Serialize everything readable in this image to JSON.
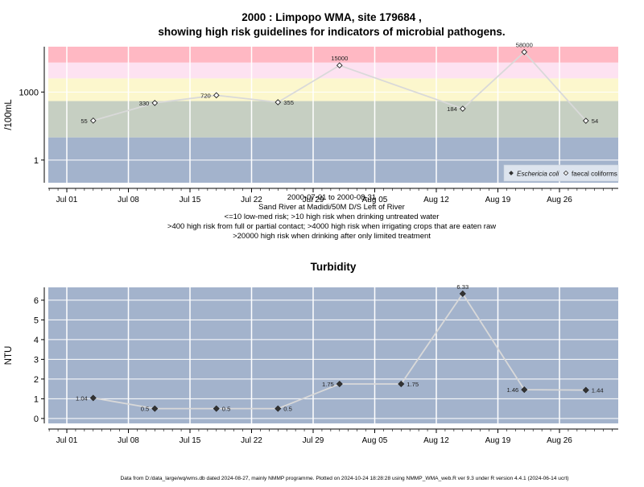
{
  "title_line1": "2000 : Limpopo WMA, site 179684 ,",
  "title_line2": "showing high risk guidelines for indicators of microbial pathogens.",
  "caption_lines": [
    "2000-07-01 to 2000-08-31",
    "Sand River at Madidi/50M D/S Left of River",
    "<=10 low-med risk; >10 high risk when drinking untreated water",
    ">400 high risk from full or partial contact; >4000 high risk when irrigating crops that are eaten raw",
    ">20000 high risk when drinking after only limited treatment"
  ],
  "footer": "Data from D:/data_large/wq/wms.db dated 2024-08-27, mainly NMMP programme. Plotted on 2024-10-24 18:28:28 using NMMP_WMA_web.R ver 9.3 under R version 4.4.1 (2024-06-14 ucrt)",
  "colors": {
    "panel_bg": "#a3b3cc",
    "band_low": "#a3b3cc",
    "band_400": "#c6cfc2",
    "band_4000": "#fcf7cd",
    "band_20000": "#fde2f1",
    "band_high": "#ffb8c3",
    "grid": "#ffffff",
    "series_line": "#d9d9d9",
    "marker": "#333333"
  },
  "chart_data": [
    {
      "type": "line",
      "title": "",
      "xlabel": "",
      "ylabel": "/100mL",
      "y_scale": "log10",
      "ylim": [
        0.1,
        100000
      ],
      "x_ticks": [
        "Jul 01",
        "Jul 08",
        "Jul 15",
        "Jul 22",
        "Jul 29",
        "Aug 05",
        "Aug 12",
        "Aug 19",
        "Aug 26"
      ],
      "y_ticks": [
        {
          "value": 1,
          "label": "1"
        },
        {
          "value": 1000,
          "label": "1000"
        }
      ],
      "risk_bands": [
        {
          "from": 0.1,
          "to": 10,
          "color_key": "band_low"
        },
        {
          "from": 10,
          "to": 400,
          "color_key": "band_400"
        },
        {
          "from": 400,
          "to": 4000,
          "color_key": "band_4000"
        },
        {
          "from": 4000,
          "to": 20000,
          "color_key": "band_20000"
        },
        {
          "from": 20000,
          "to": 100000,
          "color_key": "band_high"
        }
      ],
      "legend": {
        "placement": "bottom-right",
        "entries": [
          {
            "label": "Eschericia coli",
            "marker": "filled-diamond",
            "italic": true
          },
          {
            "label": "faecal coliforms",
            "marker": "open-diamond",
            "italic": false
          }
        ]
      },
      "series": [
        {
          "name": "faecal coliforms",
          "marker": "open-diamond",
          "points": [
            {
              "x": "2000-07-04",
              "y": 55,
              "label": "55",
              "label_side": "left"
            },
            {
              "x": "2000-07-11",
              "y": 330,
              "label": "330",
              "label_side": "left"
            },
            {
              "x": "2000-07-18",
              "y": 720,
              "label": "720",
              "label_side": "left"
            },
            {
              "x": "2000-07-25",
              "y": 355,
              "label": "355",
              "label_side": "right"
            },
            {
              "x": "2000-08-01",
              "y": 15000,
              "label": "15000",
              "label_side": "above"
            },
            {
              "x": "2000-08-15",
              "y": 184,
              "label": "184",
              "label_side": "left"
            },
            {
              "x": "2000-08-22",
              "y": 58000,
              "label": "58000",
              "label_side": "above"
            },
            {
              "x": "2000-08-29",
              "y": 54,
              "label": "54",
              "label_side": "right"
            }
          ]
        }
      ]
    },
    {
      "type": "line",
      "title": "Turbidity",
      "xlabel": "",
      "ylabel": "NTU",
      "ylim": [
        -0.25,
        6.65
      ],
      "x_ticks": [
        "Jul 01",
        "Jul 08",
        "Jul 15",
        "Jul 22",
        "Jul 29",
        "Aug 05",
        "Aug 12",
        "Aug 19",
        "Aug 26"
      ],
      "y_ticks": [
        {
          "value": 0,
          "label": "0"
        },
        {
          "value": 1,
          "label": "1"
        },
        {
          "value": 2,
          "label": "2"
        },
        {
          "value": 3,
          "label": "3"
        },
        {
          "value": 4,
          "label": "4"
        },
        {
          "value": 5,
          "label": "5"
        },
        {
          "value": 6,
          "label": "6"
        }
      ],
      "series": [
        {
          "name": "",
          "marker": "filled-diamond",
          "points": [
            {
              "x": "2000-07-04",
              "y": 1.04,
              "label": "1.04",
              "label_side": "left"
            },
            {
              "x": "2000-07-11",
              "y": 0.5,
              "label": "0.5",
              "label_side": "left"
            },
            {
              "x": "2000-07-18",
              "y": 0.5,
              "label": "0.5",
              "label_side": "right"
            },
            {
              "x": "2000-07-25",
              "y": 0.5,
              "label": "0.5",
              "label_side": "right"
            },
            {
              "x": "2000-08-01",
              "y": 1.75,
              "label": "1.75",
              "label_side": "left"
            },
            {
              "x": "2000-08-08",
              "y": 1.75,
              "label": "1.75",
              "label_side": "right"
            },
            {
              "x": "2000-08-15",
              "y": 6.33,
              "label": "6.33",
              "label_side": "above"
            },
            {
              "x": "2000-08-22",
              "y": 1.46,
              "label": "1.46",
              "label_side": "left"
            },
            {
              "x": "2000-08-29",
              "y": 1.44,
              "label": "1.44",
              "label_side": "right"
            }
          ]
        }
      ]
    }
  ]
}
